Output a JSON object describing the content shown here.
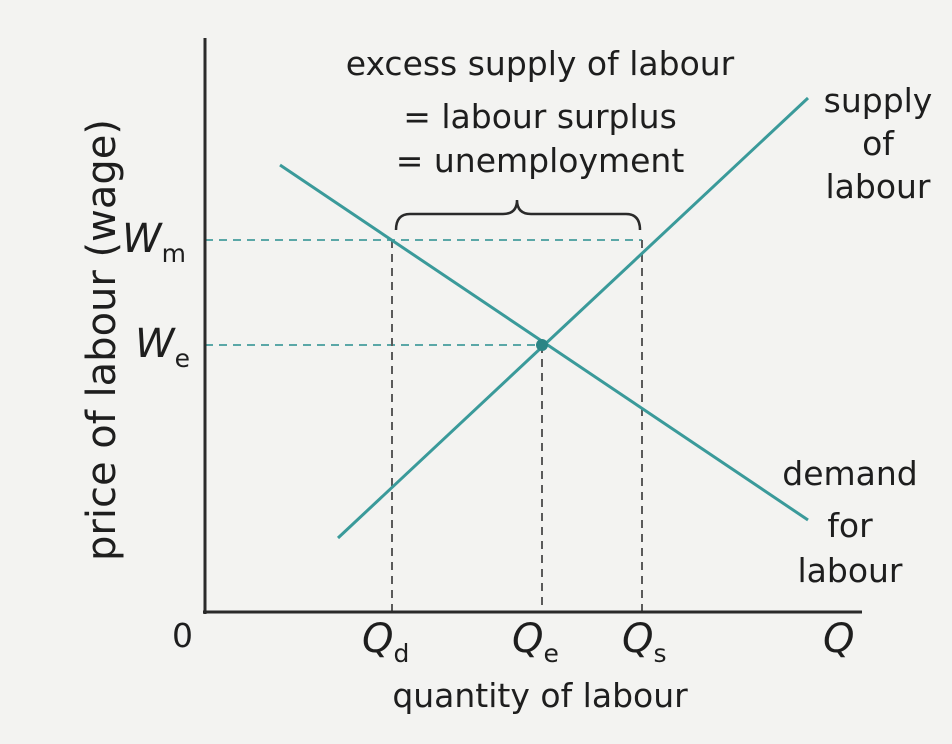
{
  "diagram": {
    "axis": {
      "y_label": "price of labour (wage)",
      "x_label": "quantity of labour",
      "origin": "0",
      "x_end": "Q"
    },
    "wage_labels": {
      "wm_main": "W",
      "wm_sub": "m",
      "we_main": "W",
      "we_sub": "e"
    },
    "quantity_labels": {
      "qd_main": "Q",
      "qd_sub": "d",
      "qe_main": "Q",
      "qe_sub": "e",
      "qs_main": "Q",
      "qs_sub": "s"
    },
    "annotation": {
      "line1": "excess supply of labour",
      "line2": "= labour surplus",
      "line3": "= unemployment"
    },
    "curves": {
      "supply_line1": "supply",
      "supply_line2": "of",
      "supply_line3": "labour",
      "demand_line1": "demand",
      "demand_line2": "for",
      "demand_line3": "labour"
    },
    "colors": {
      "curve": "#3a9a9a",
      "axis": "#2a2a2a",
      "guide": "#5aa7a7",
      "text": "#1e1e1e"
    }
  }
}
